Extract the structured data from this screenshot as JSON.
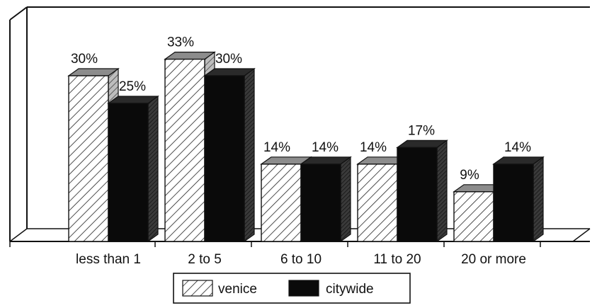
{
  "chart_data": {
    "type": "bar",
    "categories": [
      "less than 1",
      "2 to 5",
      "6 to 10",
      "11 to 20",
      "20 or more"
    ],
    "series": [
      {
        "name": "venice",
        "values": [
          30,
          33,
          14,
          14,
          9
        ],
        "labels": [
          "30%",
          "33%",
          "14%",
          "14%",
          "9%"
        ]
      },
      {
        "name": "citywide",
        "values": [
          25,
          30,
          14,
          17,
          14
        ],
        "labels": [
          "25%",
          "30%",
          "14%",
          "17%",
          "14%"
        ]
      }
    ],
    "ylim": [
      0,
      40
    ],
    "grid": false,
    "legend_position": "bottom",
    "three_d": true,
    "colors": {
      "venice": "#ffffff",
      "citywide": "#0a0a0a",
      "frame": "#111111"
    }
  }
}
